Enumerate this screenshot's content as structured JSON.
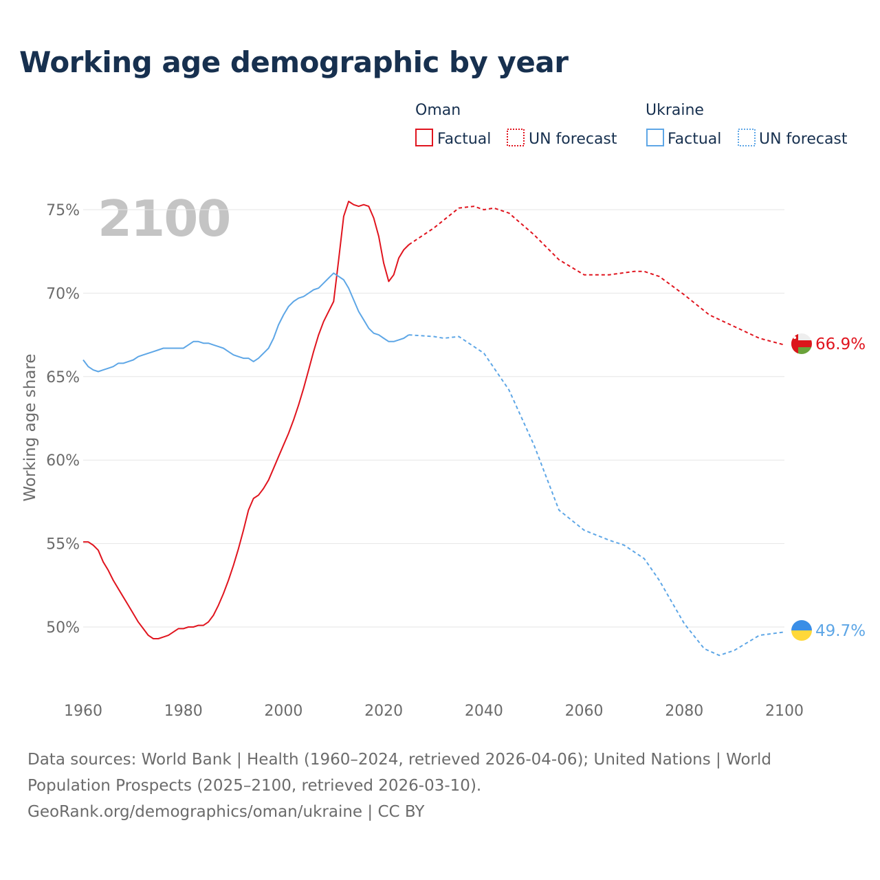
{
  "title": "Working age demographic by year",
  "year_watermark": "2100",
  "legend": {
    "groups": [
      {
        "country": "Oman",
        "color": "#e0141e",
        "factual_label": "Factual",
        "forecast_label": "UN forecast"
      },
      {
        "country": "Ukraine",
        "color": "#5da6e6",
        "factual_label": "Factual",
        "forecast_label": "UN forecast"
      }
    ]
  },
  "footer": {
    "sources": "Data sources: World Bank | Health (1960–2024, retrieved 2026-04-06); United Nations | World Population Prospects (2025–2100, retrieved 2026-03-10).",
    "attribution": "GeoRank.org/demographics/oman/ukraine | CC BY"
  },
  "chart_data": {
    "type": "line",
    "title": "Working age demographic by year",
    "xlabel": "",
    "ylabel": "Working age share",
    "xlim": [
      1960,
      2100
    ],
    "ylim": [
      46,
      77
    ],
    "x_ticks": [
      1960,
      1980,
      2000,
      2020,
      2040,
      2060,
      2080,
      2100
    ],
    "x_tick_labels": [
      "1960",
      "1980",
      "2000",
      "2020",
      "2040",
      "2060",
      "2080",
      "2100"
    ],
    "y_ticks": [
      50,
      55,
      60,
      65,
      70,
      75
    ],
    "y_tick_labels": [
      "50%",
      "55%",
      "60%",
      "65%",
      "70%",
      "75%"
    ],
    "grid": true,
    "series": [
      {
        "name": "Oman",
        "color": "#e0141e",
        "end_label": "66.9%",
        "flag": "oman",
        "factual": {
          "x": [
            1960,
            1961,
            1962,
            1963,
            1964,
            1965,
            1966,
            1967,
            1968,
            1969,
            1970,
            1971,
            1972,
            1973,
            1974,
            1975,
            1976,
            1977,
            1978,
            1979,
            1980,
            1981,
            1982,
            1983,
            1984,
            1985,
            1986,
            1987,
            1988,
            1989,
            1990,
            1991,
            1992,
            1993,
            1994,
            1995,
            1996,
            1997,
            1998,
            1999,
            2000,
            2001,
            2002,
            2003,
            2004,
            2005,
            2006,
            2007,
            2008,
            2009,
            2010,
            2011,
            2012,
            2013,
            2014,
            2015,
            2016,
            2017,
            2018,
            2019,
            2020,
            2021,
            2022,
            2023,
            2024,
            2025
          ],
          "y": [
            55.1,
            55.1,
            54.9,
            54.6,
            53.9,
            53.4,
            52.8,
            52.3,
            51.8,
            51.3,
            50.8,
            50.3,
            49.9,
            49.5,
            49.3,
            49.3,
            49.4,
            49.5,
            49.7,
            49.9,
            49.9,
            50.0,
            50.0,
            50.1,
            50.1,
            50.3,
            50.7,
            51.3,
            52.0,
            52.8,
            53.7,
            54.7,
            55.8,
            57.0,
            57.7,
            57.9,
            58.3,
            58.8,
            59.5,
            60.2,
            60.9,
            61.6,
            62.4,
            63.3,
            64.3,
            65.4,
            66.5,
            67.5,
            68.3,
            68.9,
            69.5,
            72.0,
            74.6,
            75.5,
            75.3,
            75.2,
            75.3,
            75.2,
            74.5,
            73.4,
            71.8,
            70.7,
            71.1,
            72.1,
            72.6,
            72.9
          ]
        },
        "forecast": {
          "x": [
            2025,
            2030,
            2035,
            2038,
            2040,
            2042,
            2045,
            2050,
            2055,
            2060,
            2065,
            2070,
            2072,
            2075,
            2080,
            2085,
            2090,
            2095,
            2100
          ],
          "y": [
            72.9,
            73.9,
            75.1,
            75.2,
            75.0,
            75.1,
            74.8,
            73.5,
            72.0,
            71.1,
            71.1,
            71.3,
            71.3,
            71.0,
            69.9,
            68.7,
            68.0,
            67.3,
            66.9
          ]
        }
      },
      {
        "name": "Ukraine",
        "color": "#5da6e6",
        "end_label": "49.7%",
        "flag": "ukraine",
        "factual": {
          "x": [
            1960,
            1961,
            1962,
            1963,
            1964,
            1965,
            1966,
            1967,
            1968,
            1969,
            1970,
            1971,
            1972,
            1973,
            1974,
            1975,
            1976,
            1977,
            1978,
            1979,
            1980,
            1981,
            1982,
            1983,
            1984,
            1985,
            1986,
            1987,
            1988,
            1989,
            1990,
            1991,
            1992,
            1993,
            1994,
            1995,
            1996,
            1997,
            1998,
            1999,
            2000,
            2001,
            2002,
            2003,
            2004,
            2005,
            2006,
            2007,
            2008,
            2009,
            2010,
            2011,
            2012,
            2013,
            2014,
            2015,
            2016,
            2017,
            2018,
            2019,
            2020,
            2021,
            2022,
            2023,
            2024,
            2025
          ],
          "y": [
            66.0,
            65.6,
            65.4,
            65.3,
            65.4,
            65.5,
            65.6,
            65.8,
            65.8,
            65.9,
            66.0,
            66.2,
            66.3,
            66.4,
            66.5,
            66.6,
            66.7,
            66.7,
            66.7,
            66.7,
            66.7,
            66.9,
            67.1,
            67.1,
            67.0,
            67.0,
            66.9,
            66.8,
            66.7,
            66.5,
            66.3,
            66.2,
            66.1,
            66.1,
            65.9,
            66.1,
            66.4,
            66.7,
            67.3,
            68.1,
            68.7,
            69.2,
            69.5,
            69.7,
            69.8,
            70.0,
            70.2,
            70.3,
            70.6,
            70.9,
            71.2,
            71.0,
            70.8,
            70.3,
            69.6,
            68.9,
            68.4,
            67.9,
            67.6,
            67.5,
            67.3,
            67.1,
            67.1,
            67.2,
            67.3,
            67.5
          ]
        },
        "forecast": {
          "x": [
            2025,
            2030,
            2032,
            2035,
            2038,
            2040,
            2045,
            2050,
            2055,
            2060,
            2065,
            2068,
            2072,
            2075,
            2080,
            2084,
            2087,
            2090,
            2095,
            2100
          ],
          "y": [
            67.5,
            67.4,
            67.3,
            67.4,
            66.8,
            66.4,
            64.2,
            60.9,
            57.0,
            55.8,
            55.2,
            54.9,
            54.1,
            52.8,
            50.2,
            48.7,
            48.3,
            48.6,
            49.5,
            49.7
          ]
        }
      }
    ]
  }
}
